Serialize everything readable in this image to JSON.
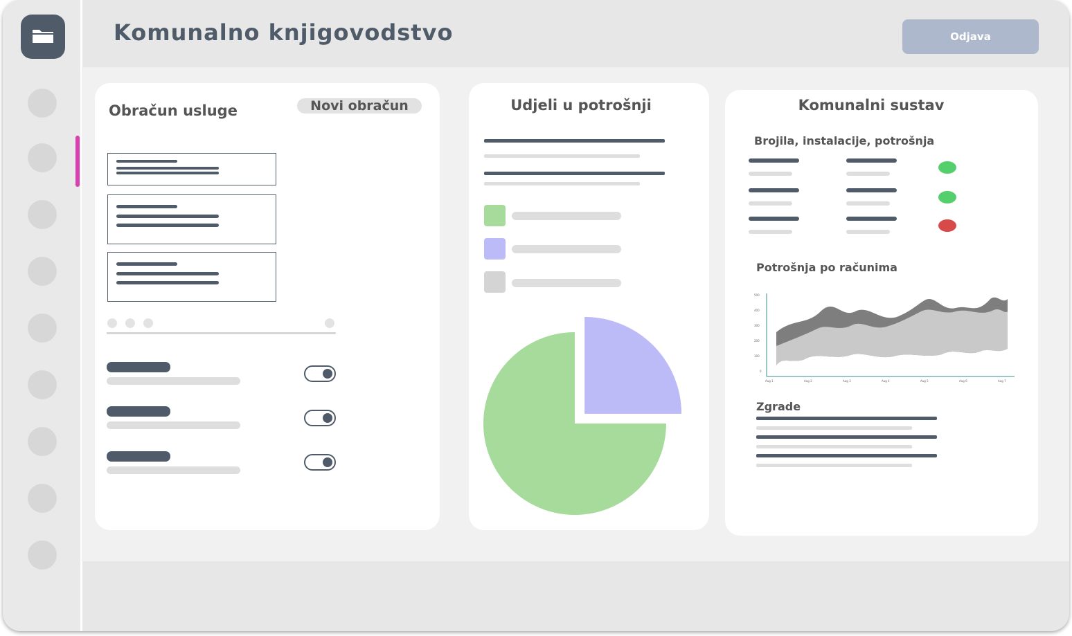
{
  "header": {
    "title": "Komunalno knjigovodstvo",
    "logout_label": "Odjava"
  },
  "service_card": {
    "title": "Obračun usluge",
    "new_button_label": "Novi obračun"
  },
  "share_card": {
    "title": "Udjeli u potrošnji",
    "legend_colors": [
      "#a7db9c",
      "#bdbaf8",
      "#d4d4d4"
    ],
    "chart_data": {
      "type": "pie",
      "title": "",
      "values": [
        75,
        25
      ],
      "colors": [
        "#a7db9c",
        "#bdbaf8"
      ]
    }
  },
  "system_card": {
    "title": "Komunalni sustav",
    "meters_title": "Brojila, instalacije, potrošnja",
    "meter_status_colors": [
      "#55cf6b",
      "#55cf6b",
      "#d84a4a"
    ],
    "consumption_title": "Potrošnja po računima",
    "buildings_title": "Zgrade"
  },
  "colors": {
    "accent": "#4f5b69",
    "active_indicator": "#d93fb0"
  }
}
